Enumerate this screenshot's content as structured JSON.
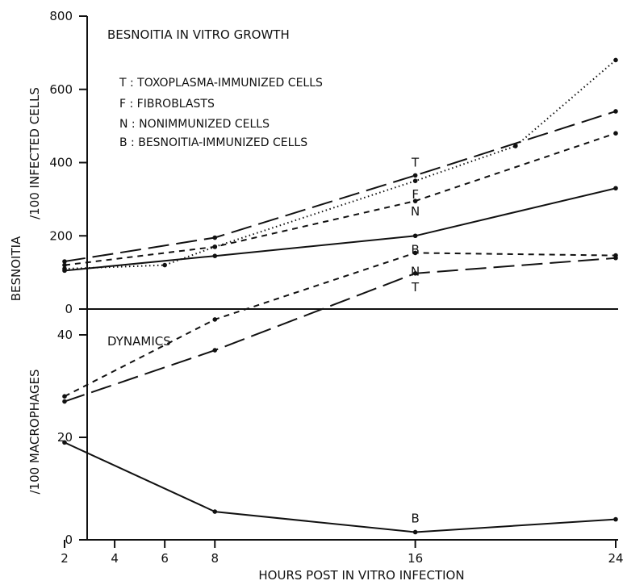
{
  "chart_data": [
    {
      "type": "line",
      "title": "BESNOITIA IN VITRO GROWTH",
      "ylabel": "/100 INFECTED CELLS",
      "ylim": [
        0,
        800
      ],
      "yticks": [
        0,
        200,
        400,
        600,
        800
      ],
      "legend": [
        "T : TOXOPLASMA-IMMUNIZED CELLS",
        "F : FIBROBLASTS",
        "N : NONIMMUNIZED CELLS",
        "B : BESNOITIA-IMMUNIZED CELLS"
      ],
      "legend_position": "top-left",
      "series": [
        {
          "key": "T",
          "style": "long-dash",
          "label": "T",
          "label_at": 16,
          "x": [
            2,
            8,
            16,
            24
          ],
          "y": [
            130,
            195,
            365,
            540
          ]
        },
        {
          "key": "F",
          "style": "dotted",
          "label": "F",
          "label_at": 16,
          "x": [
            2,
            6,
            8,
            16,
            20,
            24
          ],
          "y": [
            110,
            120,
            170,
            350,
            445,
            680
          ]
        },
        {
          "key": "N",
          "style": "short-dash",
          "label": "N",
          "label_at": 16,
          "x": [
            2,
            8,
            16,
            24
          ],
          "y": [
            120,
            170,
            295,
            480
          ]
        },
        {
          "key": "B",
          "style": "solid",
          "label": "B",
          "label_at": 16,
          "x": [
            2,
            8,
            16,
            24
          ],
          "y": [
            105,
            145,
            200,
            330
          ]
        }
      ]
    },
    {
      "type": "line",
      "title": "DYNAMICS",
      "ylabel": "/100 MACROPHAGES",
      "ylim": [
        0,
        60
      ],
      "yticks": [
        0,
        20,
        40
      ],
      "series": [
        {
          "key": "N",
          "style": "short-dash",
          "label": "N",
          "label_at": 16,
          "x": [
            2,
            8,
            16,
            24
          ],
          "y": [
            28,
            43,
            56,
            55.5
          ]
        },
        {
          "key": "T",
          "style": "long-dash",
          "label": "T",
          "label_at": 16,
          "x": [
            2,
            8,
            16,
            24
          ],
          "y": [
            27,
            37,
            52,
            55
          ]
        },
        {
          "key": "B",
          "style": "solid",
          "label": "B",
          "label_at": 16,
          "x": [
            2,
            8,
            16,
            24
          ],
          "y": [
            19,
            5.5,
            1.5,
            4
          ]
        }
      ]
    }
  ],
  "shared": {
    "xlabel": "HOURS POST IN VITRO INFECTION",
    "xticks": [
      2,
      4,
      6,
      8,
      16,
      24
    ],
    "xlim": [
      0,
      24
    ],
    "shared_ylabel": "BESNOITIA"
  }
}
